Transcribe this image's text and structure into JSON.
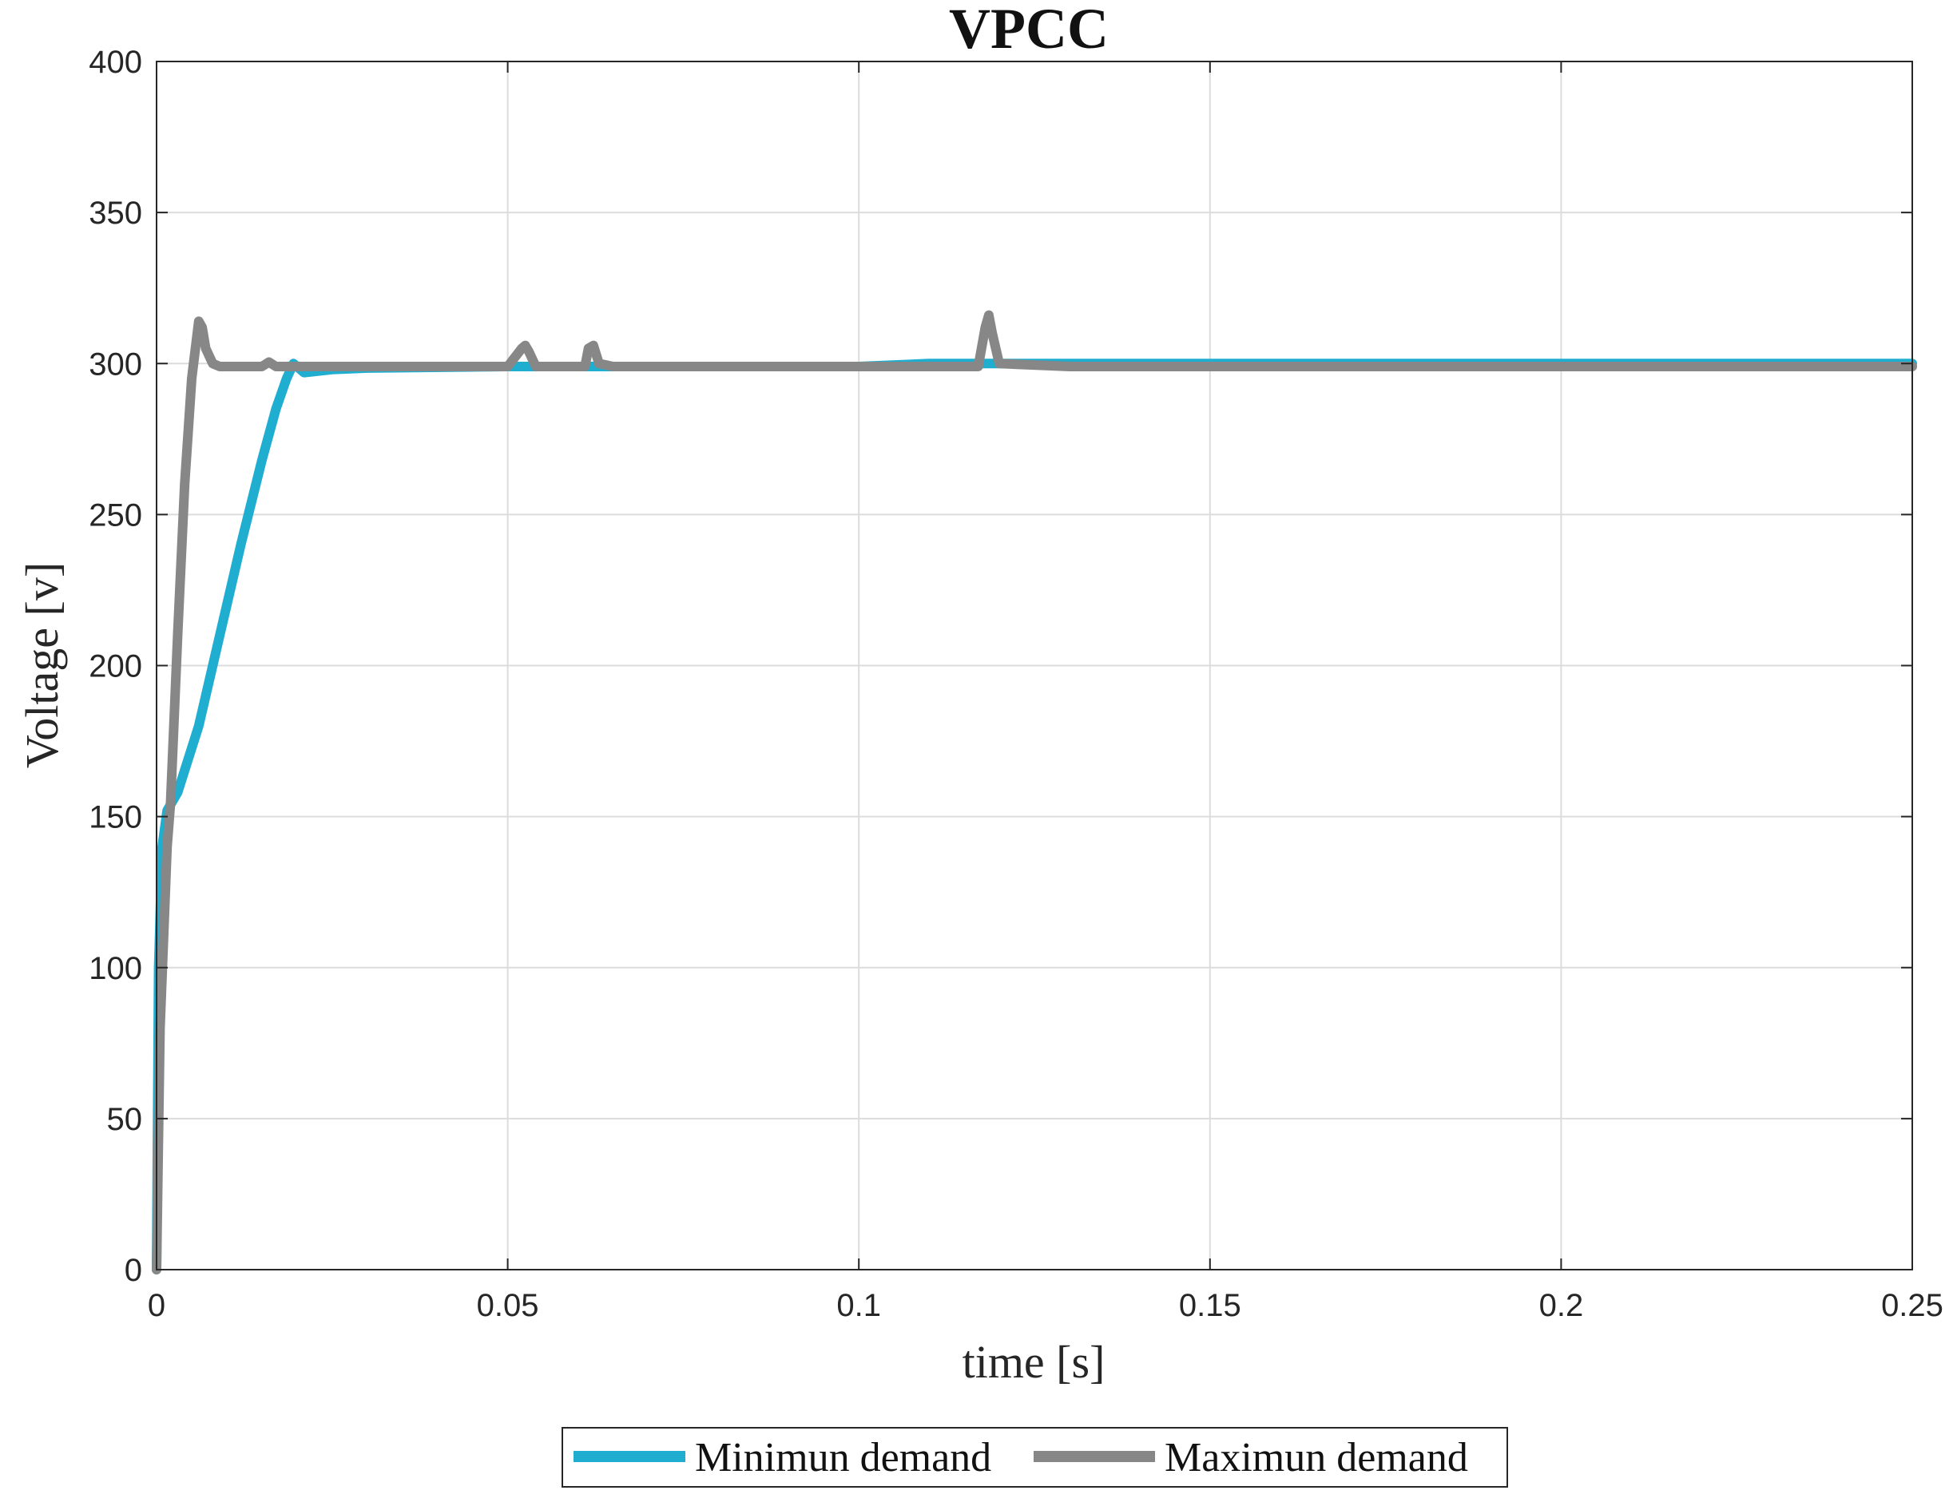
{
  "chart_data": {
    "type": "line",
    "title": "VPCC",
    "xlabel": "time [s]",
    "ylabel": "Voltage [v]",
    "xlim": [
      0,
      0.25
    ],
    "ylim": [
      0,
      400
    ],
    "x_ticks": [
      "0",
      "0.05",
      "0.1",
      "0.15",
      "0.2",
      "0.25"
    ],
    "y_ticks": [
      "0",
      "50",
      "100",
      "150",
      "200",
      "250",
      "300",
      "350",
      "400"
    ],
    "grid": true,
    "legend_position": "bottom-center",
    "series": [
      {
        "name": "Minimun demand",
        "color": "#1fadd0",
        "x": [
          0,
          0.0003,
          0.0008,
          0.0015,
          0.003,
          0.006,
          0.009,
          0.012,
          0.015,
          0.017,
          0.0185,
          0.0195,
          0.02,
          0.021,
          0.025,
          0.03,
          0.05,
          0.075,
          0.1,
          0.11,
          0.15,
          0.2,
          0.25
        ],
        "y": [
          0,
          100,
          140,
          152,
          158,
          180,
          210,
          240,
          268,
          285,
          295,
          300,
          299,
          297,
          298,
          298.5,
          299,
          299,
          299,
          300,
          300,
          300,
          300
        ]
      },
      {
        "name": "Maximun demand",
        "color": "#878787",
        "x": [
          0,
          0.0005,
          0.0015,
          0.002,
          0.003,
          0.004,
          0.005,
          0.006,
          0.0065,
          0.007,
          0.008,
          0.009,
          0.012,
          0.015,
          0.016,
          0.017,
          0.02,
          0.03,
          0.05,
          0.052,
          0.0525,
          0.053,
          0.054,
          0.061,
          0.0615,
          0.0622,
          0.063,
          0.065,
          0.1,
          0.117,
          0.118,
          0.1185,
          0.119,
          0.12,
          0.13,
          0.2,
          0.25
        ],
        "y": [
          0,
          80,
          140,
          155,
          210,
          260,
          295,
          314,
          312,
          305,
          300,
          299,
          299,
          299,
          300.5,
          299,
          299,
          299,
          299,
          305,
          306,
          304,
          299,
          299,
          305,
          306,
          300,
          299,
          299,
          299,
          312,
          316,
          310,
          300,
          299,
          299,
          299
        ]
      }
    ]
  }
}
